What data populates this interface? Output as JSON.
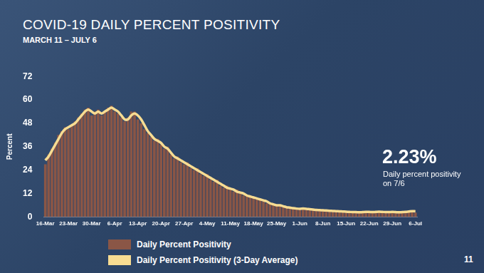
{
  "chart_data": {
    "type": "bar",
    "title": "COVID-19 DAILY PERCENT POSITIVITY",
    "subtitle": "MARCH 11 – JULY 6",
    "y_label": "Percent",
    "annotations": [
      "2.23%",
      "Daily percent positivity on 7/6"
    ],
    "page_number": "11",
    "categories": [
      "16-Mar",
      null,
      null,
      null,
      null,
      null,
      null,
      "23-Mar",
      null,
      null,
      null,
      null,
      null,
      null,
      "30-Mar",
      null,
      null,
      null,
      null,
      null,
      null,
      "6-Apr",
      null,
      null,
      null,
      null,
      null,
      null,
      "13-Apr",
      null,
      null,
      null,
      null,
      null,
      null,
      "20-Apr",
      null,
      null,
      null,
      null,
      null,
      null,
      "27-Apr",
      null,
      null,
      null,
      null,
      null,
      null,
      "4-May",
      null,
      null,
      null,
      null,
      null,
      null,
      "11-May",
      null,
      null,
      null,
      null,
      null,
      null,
      "18-May",
      null,
      null,
      null,
      null,
      null,
      null,
      "25-May",
      null,
      null,
      null,
      null,
      null,
      null,
      "1-Jun",
      null,
      null,
      null,
      null,
      null,
      null,
      "8-Jun",
      null,
      null,
      null,
      null,
      null,
      null,
      "15-Jun",
      null,
      null,
      null,
      null,
      null,
      null,
      "22-Jun",
      null,
      null,
      null,
      null,
      null,
      null,
      "29-Jun",
      null,
      null,
      null,
      null,
      null,
      null,
      "6-Jul"
    ],
    "series": [
      {
        "name": "Daily Percent Positivity",
        "type": "bar",
        "color": "#8a5646",
        "values": [
          27,
          32,
          35,
          38,
          42,
          44,
          46,
          45,
          47,
          49,
          51,
          53,
          55,
          56,
          52,
          54,
          55,
          52,
          54,
          56,
          57,
          54,
          53,
          51,
          49,
          51,
          54,
          54,
          50,
          48,
          45,
          43,
          41,
          39,
          40,
          37,
          35,
          36,
          32,
          30,
          31,
          28,
          27,
          28,
          25,
          24,
          25,
          22,
          21,
          22,
          19,
          18,
          19,
          16,
          15,
          16,
          14,
          13,
          14,
          12,
          11,
          11,
          10,
          10,
          9,
          9,
          8,
          7,
          7,
          6,
          6,
          5.5,
          5,
          5,
          4.5,
          4.4,
          4,
          4.3,
          4.1,
          4.2,
          3.9,
          3.7,
          3.5,
          3.4,
          3.3,
          3.2,
          3.1,
          3,
          2.9,
          2.8,
          2.7,
          2.6,
          2.5,
          2.4,
          2.6,
          2.3,
          2.6,
          2.7,
          2.5,
          2.4,
          2.8,
          2.6,
          2.5,
          2.4,
          2.6,
          2.7,
          2.3,
          2.3,
          2.6,
          2.8,
          3,
          3.2,
          2.23
        ]
      },
      {
        "name": "Daily Percent Positivity (3-Day Average)",
        "type": "line",
        "color": "#f7dc92",
        "values": [
          29,
          31,
          34,
          37,
          40,
          43,
          45,
          46,
          47,
          48,
          50,
          52,
          54,
          55,
          54,
          53,
          54,
          53,
          54,
          55,
          56,
          55,
          54,
          52,
          50,
          50,
          52,
          53,
          52,
          50,
          47,
          44,
          42,
          40,
          39,
          38,
          36,
          35,
          33,
          31,
          30,
          29,
          28,
          27,
          26,
          25,
          24,
          23,
          22,
          21,
          20,
          19,
          18,
          17,
          16,
          15,
          14.5,
          14,
          13,
          12.5,
          12,
          11,
          10.5,
          10,
          9.5,
          9,
          8.5,
          8,
          7,
          6.5,
          6,
          6,
          5.5,
          5,
          4.8,
          4.5,
          4.3,
          4.2,
          4.3,
          4.2,
          4,
          3.8,
          3.6,
          3.5,
          3.4,
          3.3,
          3.2,
          3.1,
          3,
          2.9,
          2.8,
          2.7,
          2.6,
          2.5,
          2.5,
          2.4,
          2.5,
          2.6,
          2.6,
          2.5,
          2.6,
          2.7,
          2.6,
          2.5,
          2.5,
          2.6,
          2.5,
          2.4,
          2.5,
          2.6,
          2.8,
          3,
          2.9
        ]
      }
    ],
    "ylim": [
      0,
      72
    ],
    "yticks": [
      0,
      12,
      24,
      36,
      48,
      60,
      72
    ],
    "grid": false
  }
}
